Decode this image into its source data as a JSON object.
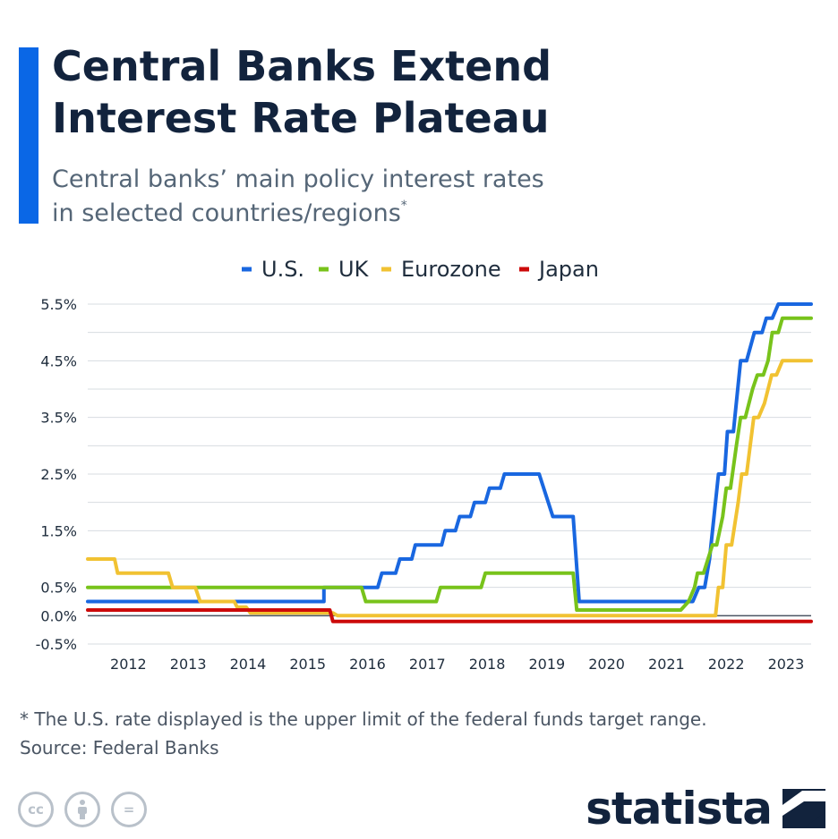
{
  "header": {
    "title_line1": "Central Banks Extend",
    "title_line2": "Interest Rate Plateau",
    "subtitle_line1": "Central banks’ main policy interest rates",
    "subtitle_line2": "in selected countries/regions",
    "subtitle_mark": "*",
    "accent_color": "#0a67e6"
  },
  "chart_data": {
    "type": "line",
    "title": "Central Banks Extend Interest Rate Plateau",
    "xlabel": "",
    "ylabel": "",
    "xlim": [
      2011.5,
      2023.6
    ],
    "ylim": [
      -0.5,
      5.5
    ],
    "y_ticks": [
      {
        "value": 5.5,
        "label": "5.5%"
      },
      {
        "value": 4.5,
        "label": "4.5%"
      },
      {
        "value": 3.5,
        "label": "3.5%"
      },
      {
        "value": 2.5,
        "label": "2.5%"
      },
      {
        "value": 1.5,
        "label": "1.5%"
      },
      {
        "value": 0.5,
        "label": "0.5%"
      },
      {
        "value": 0.0,
        "label": "0.0%"
      },
      {
        "value": -0.5,
        "label": "-0.5%"
      }
    ],
    "x_ticks": [
      {
        "value": 2012,
        "label": "2012"
      },
      {
        "value": 2013,
        "label": "2013"
      },
      {
        "value": 2014,
        "label": "2014"
      },
      {
        "value": 2015,
        "label": "2015"
      },
      {
        "value": 2016,
        "label": "2016"
      },
      {
        "value": 2017,
        "label": "2017"
      },
      {
        "value": 2018,
        "label": "2018"
      },
      {
        "value": 2019,
        "label": "2019"
      },
      {
        "value": 2020,
        "label": "2020"
      },
      {
        "value": 2021,
        "label": "2021"
      },
      {
        "value": 2022,
        "label": "2022"
      },
      {
        "value": 2023,
        "label": "2023"
      }
    ],
    "grid_values": [
      5.5,
      5.0,
      4.5,
      4.0,
      3.5,
      3.0,
      2.5,
      2.0,
      1.5,
      1.0,
      0.5,
      -0.5
    ],
    "legend_position": "top-center",
    "series": [
      {
        "name": "U.S.",
        "color": "#1967e0",
        "points": [
          [
            2011.5,
            0.25
          ],
          [
            2015.45,
            0.25
          ],
          [
            2015.45,
            0.5
          ],
          [
            2016.35,
            0.5
          ],
          [
            2016.42,
            0.75
          ],
          [
            2016.65,
            0.75
          ],
          [
            2016.72,
            1.0
          ],
          [
            2016.92,
            1.0
          ],
          [
            2016.98,
            1.25
          ],
          [
            2017.42,
            1.25
          ],
          [
            2017.48,
            1.5
          ],
          [
            2017.65,
            1.5
          ],
          [
            2017.72,
            1.75
          ],
          [
            2017.9,
            1.75
          ],
          [
            2017.97,
            2.0
          ],
          [
            2018.15,
            2.0
          ],
          [
            2018.22,
            2.25
          ],
          [
            2018.4,
            2.25
          ],
          [
            2018.47,
            2.5
          ],
          [
            2019.05,
            2.5
          ],
          [
            2019.28,
            1.75
          ],
          [
            2019.62,
            1.75
          ],
          [
            2019.72,
            0.25
          ],
          [
            2021.62,
            0.25
          ],
          [
            2021.72,
            0.5
          ],
          [
            2021.82,
            0.5
          ],
          [
            2021.9,
            1.0
          ],
          [
            2022.05,
            2.5
          ],
          [
            2022.15,
            2.5
          ],
          [
            2022.2,
            3.25
          ],
          [
            2022.3,
            3.25
          ],
          [
            2022.42,
            4.5
          ],
          [
            2022.52,
            4.5
          ],
          [
            2022.65,
            5.0
          ],
          [
            2022.78,
            5.0
          ],
          [
            2022.85,
            5.25
          ],
          [
            2022.95,
            5.25
          ],
          [
            2023.05,
            5.5
          ],
          [
            2023.6,
            5.5
          ]
        ]
      },
      {
        "name": "UK",
        "color": "#78c31b",
        "points": [
          [
            2011.5,
            0.5
          ],
          [
            2016.08,
            0.5
          ],
          [
            2016.15,
            0.25
          ],
          [
            2017.33,
            0.25
          ],
          [
            2017.4,
            0.5
          ],
          [
            2018.08,
            0.5
          ],
          [
            2018.15,
            0.75
          ],
          [
            2019.62,
            0.75
          ],
          [
            2019.68,
            0.1
          ],
          [
            2021.42,
            0.1
          ],
          [
            2021.55,
            0.25
          ],
          [
            2021.65,
            0.5
          ],
          [
            2021.7,
            0.75
          ],
          [
            2021.8,
            0.75
          ],
          [
            2021.95,
            1.25
          ],
          [
            2022.02,
            1.25
          ],
          [
            2022.12,
            1.75
          ],
          [
            2022.18,
            2.25
          ],
          [
            2022.25,
            2.25
          ],
          [
            2022.35,
            3.0
          ],
          [
            2022.42,
            3.5
          ],
          [
            2022.5,
            3.5
          ],
          [
            2022.62,
            4.0
          ],
          [
            2022.7,
            4.25
          ],
          [
            2022.8,
            4.25
          ],
          [
            2022.88,
            4.5
          ],
          [
            2022.95,
            5.0
          ],
          [
            2023.05,
            5.0
          ],
          [
            2023.12,
            5.25
          ],
          [
            2023.6,
            5.25
          ]
        ]
      },
      {
        "name": "Eurozone",
        "color": "#f1c232",
        "points": [
          [
            2011.5,
            1.0
          ],
          [
            2011.95,
            1.0
          ],
          [
            2012.0,
            0.75
          ],
          [
            2012.85,
            0.75
          ],
          [
            2012.92,
            0.5
          ],
          [
            2013.3,
            0.5
          ],
          [
            2013.38,
            0.25
          ],
          [
            2013.95,
            0.25
          ],
          [
            2014.0,
            0.15
          ],
          [
            2014.15,
            0.15
          ],
          [
            2014.22,
            0.05
          ],
          [
            2015.6,
            0.05
          ],
          [
            2015.68,
            0.0
          ],
          [
            2022.0,
            0.0
          ],
          [
            2022.05,
            0.5
          ],
          [
            2022.12,
            0.5
          ],
          [
            2022.18,
            1.25
          ],
          [
            2022.27,
            1.25
          ],
          [
            2022.38,
            2.0
          ],
          [
            2022.44,
            2.5
          ],
          [
            2022.52,
            2.5
          ],
          [
            2022.64,
            3.5
          ],
          [
            2022.72,
            3.5
          ],
          [
            2022.82,
            3.75
          ],
          [
            2022.94,
            4.25
          ],
          [
            2023.02,
            4.25
          ],
          [
            2023.12,
            4.5
          ],
          [
            2023.6,
            4.5
          ]
        ]
      },
      {
        "name": "Japan",
        "color": "#cc0a0a",
        "points": [
          [
            2011.5,
            0.1
          ],
          [
            2015.55,
            0.1
          ],
          [
            2015.6,
            -0.1
          ],
          [
            2023.6,
            -0.1
          ]
        ]
      }
    ]
  },
  "footer": {
    "footnote": "* The U.S. rate displayed is the upper limit of the federal funds target range.",
    "source": "Source: Federal Banks",
    "license_icons": [
      "cc-icon",
      "attribution-icon",
      "no-derivatives-icon"
    ],
    "cc_label": "cc",
    "nd_label": "=",
    "brand": "statista"
  }
}
